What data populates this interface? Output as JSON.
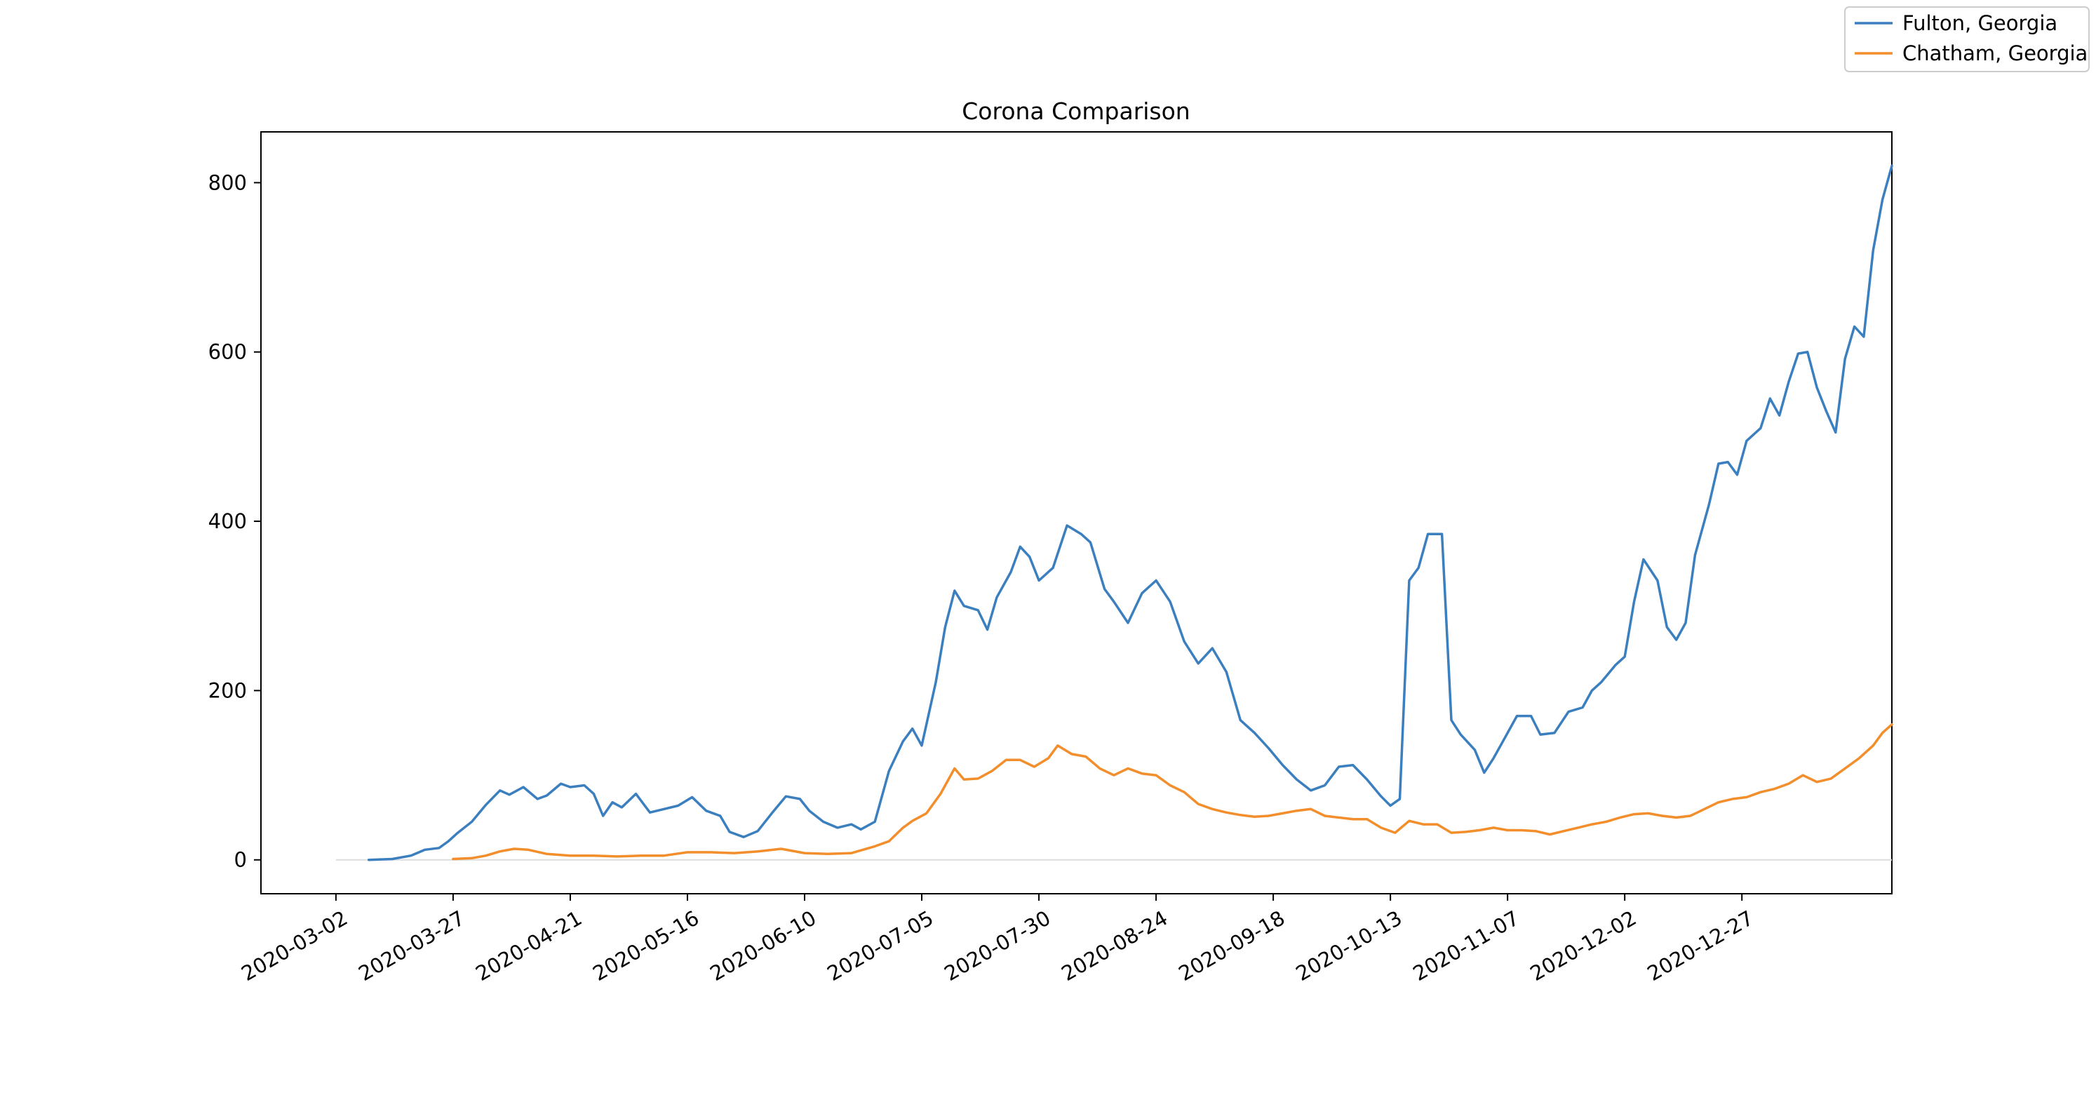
{
  "chart_data": {
    "type": "line",
    "title": "Corona Comparison",
    "xlabel": "",
    "ylabel": "",
    "x_ticks": [
      "2020-03-02",
      "2020-03-27",
      "2020-04-21",
      "2020-05-16",
      "2020-06-10",
      "2020-07-05",
      "2020-07-30",
      "2020-08-24",
      "2020-09-18",
      "2020-10-13",
      "2020-11-07",
      "2020-12-02",
      "2020-12-27"
    ],
    "y_ticks": [
      0,
      200,
      400,
      600,
      800
    ],
    "xlim": [
      "2020-02-15",
      "2021-01-28"
    ],
    "ylim": [
      -40,
      860
    ],
    "grid": false,
    "legend_position": "top-right",
    "colors": {
      "fulton": "#3b7fbf",
      "chatham": "#f28e2b",
      "zero_line": "#dddddd"
    },
    "series": [
      {
        "name": "Fulton, Georgia",
        "color": "#3b7fbf",
        "points": [
          [
            "2020-03-09",
            0
          ],
          [
            "2020-03-14",
            1
          ],
          [
            "2020-03-18",
            5
          ],
          [
            "2020-03-21",
            12
          ],
          [
            "2020-03-24",
            14
          ],
          [
            "2020-03-26",
            22
          ],
          [
            "2020-03-28",
            32
          ],
          [
            "2020-03-31",
            45
          ],
          [
            "2020-04-03",
            65
          ],
          [
            "2020-04-06",
            82
          ],
          [
            "2020-04-08",
            77
          ],
          [
            "2020-04-11",
            86
          ],
          [
            "2020-04-14",
            72
          ],
          [
            "2020-04-16",
            76
          ],
          [
            "2020-04-19",
            90
          ],
          [
            "2020-04-21",
            86
          ],
          [
            "2020-04-24",
            88
          ],
          [
            "2020-04-26",
            78
          ],
          [
            "2020-04-28",
            52
          ],
          [
            "2020-04-30",
            68
          ],
          [
            "2020-05-02",
            62
          ],
          [
            "2020-05-05",
            78
          ],
          [
            "2020-05-08",
            56
          ],
          [
            "2020-05-11",
            60
          ],
          [
            "2020-05-14",
            64
          ],
          [
            "2020-05-17",
            74
          ],
          [
            "2020-05-20",
            58
          ],
          [
            "2020-05-23",
            52
          ],
          [
            "2020-05-25",
            33
          ],
          [
            "2020-05-28",
            27
          ],
          [
            "2020-05-31",
            34
          ],
          [
            "2020-06-03",
            55
          ],
          [
            "2020-06-06",
            75
          ],
          [
            "2020-06-09",
            72
          ],
          [
            "2020-06-11",
            58
          ],
          [
            "2020-06-14",
            45
          ],
          [
            "2020-06-17",
            38
          ],
          [
            "2020-06-20",
            42
          ],
          [
            "2020-06-22",
            36
          ],
          [
            "2020-06-25",
            45
          ],
          [
            "2020-06-28",
            105
          ],
          [
            "2020-07-01",
            140
          ],
          [
            "2020-07-03",
            155
          ],
          [
            "2020-07-05",
            135
          ],
          [
            "2020-07-08",
            210
          ],
          [
            "2020-07-10",
            275
          ],
          [
            "2020-07-12",
            318
          ],
          [
            "2020-07-14",
            300
          ],
          [
            "2020-07-17",
            295
          ],
          [
            "2020-07-19",
            272
          ],
          [
            "2020-07-21",
            310
          ],
          [
            "2020-07-24",
            340
          ],
          [
            "2020-07-26",
            370
          ],
          [
            "2020-07-28",
            358
          ],
          [
            "2020-07-30",
            330
          ],
          [
            "2020-08-02",
            345
          ],
          [
            "2020-08-05",
            395
          ],
          [
            "2020-08-08",
            385
          ],
          [
            "2020-08-10",
            375
          ],
          [
            "2020-08-13",
            320
          ],
          [
            "2020-08-15",
            305
          ],
          [
            "2020-08-18",
            280
          ],
          [
            "2020-08-21",
            315
          ],
          [
            "2020-08-24",
            330
          ],
          [
            "2020-08-27",
            305
          ],
          [
            "2020-08-30",
            258
          ],
          [
            "2020-09-02",
            232
          ],
          [
            "2020-09-05",
            250
          ],
          [
            "2020-09-08",
            222
          ],
          [
            "2020-09-11",
            165
          ],
          [
            "2020-09-14",
            150
          ],
          [
            "2020-09-17",
            132
          ],
          [
            "2020-09-20",
            112
          ],
          [
            "2020-09-23",
            95
          ],
          [
            "2020-09-26",
            82
          ],
          [
            "2020-09-29",
            88
          ],
          [
            "2020-10-02",
            110
          ],
          [
            "2020-10-05",
            112
          ],
          [
            "2020-10-08",
            95
          ],
          [
            "2020-10-11",
            75
          ],
          [
            "2020-10-13",
            64
          ],
          [
            "2020-10-15",
            72
          ],
          [
            "2020-10-17",
            330
          ],
          [
            "2020-10-19",
            345
          ],
          [
            "2020-10-21",
            385
          ],
          [
            "2020-10-24",
            385
          ],
          [
            "2020-10-26",
            165
          ],
          [
            "2020-10-28",
            148
          ],
          [
            "2020-10-31",
            130
          ],
          [
            "2020-11-02",
            103
          ],
          [
            "2020-11-04",
            120
          ],
          [
            "2020-11-06",
            140
          ],
          [
            "2020-11-09",
            170
          ],
          [
            "2020-11-12",
            170
          ],
          [
            "2020-11-14",
            148
          ],
          [
            "2020-11-17",
            150
          ],
          [
            "2020-11-20",
            175
          ],
          [
            "2020-11-23",
            180
          ],
          [
            "2020-11-25",
            200
          ],
          [
            "2020-11-27",
            210
          ],
          [
            "2020-11-30",
            230
          ],
          [
            "2020-12-02",
            240
          ],
          [
            "2020-12-04",
            305
          ],
          [
            "2020-12-06",
            355
          ],
          [
            "2020-12-09",
            330
          ],
          [
            "2020-12-11",
            275
          ],
          [
            "2020-12-13",
            260
          ],
          [
            "2020-12-15",
            280
          ],
          [
            "2020-12-17",
            360
          ],
          [
            "2020-12-20",
            420
          ],
          [
            "2020-12-22",
            468
          ],
          [
            "2020-12-24",
            470
          ],
          [
            "2020-12-26",
            455
          ],
          [
            "2020-12-28",
            495
          ],
          [
            "2020-12-31",
            510
          ],
          [
            "2021-01-02",
            545
          ],
          [
            "2021-01-04",
            525
          ],
          [
            "2021-01-06",
            565
          ],
          [
            "2021-01-08",
            598
          ],
          [
            "2021-01-10",
            600
          ],
          [
            "2021-01-12",
            558
          ],
          [
            "2021-01-14",
            530
          ],
          [
            "2021-01-16",
            505
          ],
          [
            "2021-01-18",
            592
          ],
          [
            "2021-01-20",
            630
          ],
          [
            "2021-01-22",
            618
          ],
          [
            "2021-01-24",
            720
          ],
          [
            "2021-01-26",
            780
          ],
          [
            "2021-01-28",
            820
          ]
        ]
      },
      {
        "name": "Chatham, Georgia",
        "color": "#f28e2b",
        "points": [
          [
            "2020-03-27",
            1
          ],
          [
            "2020-03-31",
            2
          ],
          [
            "2020-04-03",
            5
          ],
          [
            "2020-04-06",
            10
          ],
          [
            "2020-04-09",
            13
          ],
          [
            "2020-04-12",
            12
          ],
          [
            "2020-04-16",
            7
          ],
          [
            "2020-04-21",
            5
          ],
          [
            "2020-04-26",
            5
          ],
          [
            "2020-05-01",
            4
          ],
          [
            "2020-05-06",
            5
          ],
          [
            "2020-05-11",
            5
          ],
          [
            "2020-05-16",
            9
          ],
          [
            "2020-05-21",
            9
          ],
          [
            "2020-05-26",
            8
          ],
          [
            "2020-05-31",
            10
          ],
          [
            "2020-06-05",
            13
          ],
          [
            "2020-06-10",
            8
          ],
          [
            "2020-06-15",
            7
          ],
          [
            "2020-06-20",
            8
          ],
          [
            "2020-06-25",
            16
          ],
          [
            "2020-06-28",
            22
          ],
          [
            "2020-07-01",
            38
          ],
          [
            "2020-07-03",
            46
          ],
          [
            "2020-07-06",
            55
          ],
          [
            "2020-07-09",
            78
          ],
          [
            "2020-07-12",
            108
          ],
          [
            "2020-07-14",
            95
          ],
          [
            "2020-07-17",
            96
          ],
          [
            "2020-07-20",
            105
          ],
          [
            "2020-07-23",
            118
          ],
          [
            "2020-07-26",
            118
          ],
          [
            "2020-07-29",
            110
          ],
          [
            "2020-08-01",
            120
          ],
          [
            "2020-08-03",
            135
          ],
          [
            "2020-08-06",
            125
          ],
          [
            "2020-08-09",
            122
          ],
          [
            "2020-08-12",
            108
          ],
          [
            "2020-08-15",
            100
          ],
          [
            "2020-08-18",
            108
          ],
          [
            "2020-08-21",
            102
          ],
          [
            "2020-08-24",
            100
          ],
          [
            "2020-08-27",
            88
          ],
          [
            "2020-08-30",
            80
          ],
          [
            "2020-09-02",
            66
          ],
          [
            "2020-09-05",
            60
          ],
          [
            "2020-09-08",
            56
          ],
          [
            "2020-09-11",
            53
          ],
          [
            "2020-09-14",
            51
          ],
          [
            "2020-09-17",
            52
          ],
          [
            "2020-09-20",
            55
          ],
          [
            "2020-09-23",
            58
          ],
          [
            "2020-09-26",
            60
          ],
          [
            "2020-09-29",
            52
          ],
          [
            "2020-10-02",
            50
          ],
          [
            "2020-10-05",
            48
          ],
          [
            "2020-10-08",
            48
          ],
          [
            "2020-10-11",
            38
          ],
          [
            "2020-10-14",
            32
          ],
          [
            "2020-10-17",
            46
          ],
          [
            "2020-10-20",
            42
          ],
          [
            "2020-10-23",
            42
          ],
          [
            "2020-10-26",
            32
          ],
          [
            "2020-10-29",
            33
          ],
          [
            "2020-11-01",
            35
          ],
          [
            "2020-11-04",
            38
          ],
          [
            "2020-11-07",
            35
          ],
          [
            "2020-11-10",
            35
          ],
          [
            "2020-11-13",
            34
          ],
          [
            "2020-11-16",
            30
          ],
          [
            "2020-11-19",
            34
          ],
          [
            "2020-11-22",
            38
          ],
          [
            "2020-11-25",
            42
          ],
          [
            "2020-11-28",
            45
          ],
          [
            "2020-12-01",
            50
          ],
          [
            "2020-12-04",
            54
          ],
          [
            "2020-12-07",
            55
          ],
          [
            "2020-12-10",
            52
          ],
          [
            "2020-12-13",
            50
          ],
          [
            "2020-12-16",
            52
          ],
          [
            "2020-12-19",
            60
          ],
          [
            "2020-12-22",
            68
          ],
          [
            "2020-12-25",
            72
          ],
          [
            "2020-12-28",
            74
          ],
          [
            "2020-12-31",
            80
          ],
          [
            "2021-01-03",
            84
          ],
          [
            "2021-01-06",
            90
          ],
          [
            "2021-01-09",
            100
          ],
          [
            "2021-01-12",
            92
          ],
          [
            "2021-01-15",
            96
          ],
          [
            "2021-01-18",
            108
          ],
          [
            "2021-01-21",
            120
          ],
          [
            "2021-01-24",
            135
          ],
          [
            "2021-01-26",
            150
          ],
          [
            "2021-01-28",
            160
          ]
        ]
      }
    ]
  }
}
